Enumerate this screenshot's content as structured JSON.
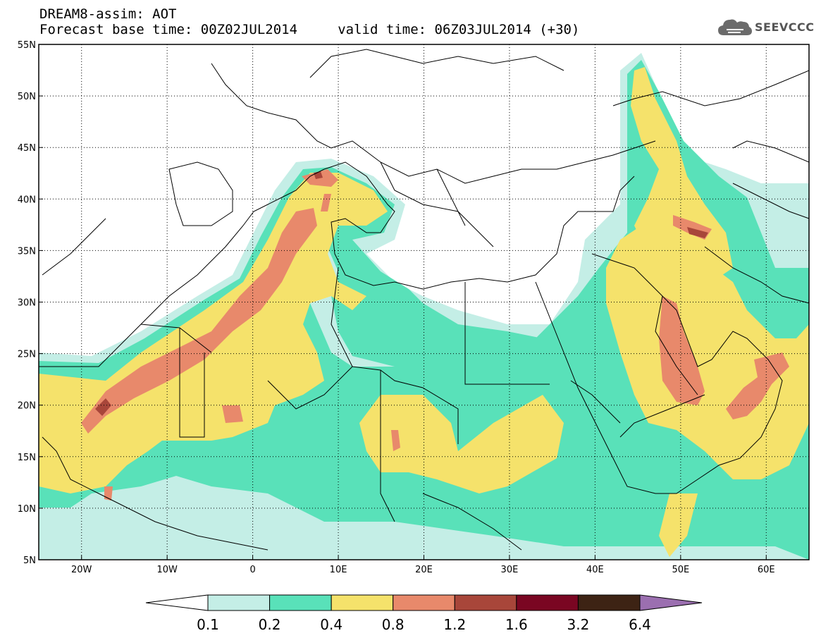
{
  "header": {
    "title_line1": "DREAM8-assim: AOT",
    "title_line2": "Forecast base time: 00Z02JUL2014     valid time: 06Z03JUL2014 (+30)"
  },
  "logo": {
    "text": "SEEVCCC",
    "icon": "cloud-icon"
  },
  "map": {
    "lon_range": [
      -25,
      65
    ],
    "lat_range": [
      5,
      55
    ],
    "lon_ticks": [
      {
        "lon": -20,
        "label": "20W"
      },
      {
        "lon": -10,
        "label": "10W"
      },
      {
        "lon": 0,
        "label": "0"
      },
      {
        "lon": 10,
        "label": "10E"
      },
      {
        "lon": 20,
        "label": "20E"
      },
      {
        "lon": 30,
        "label": "30E"
      },
      {
        "lon": 40,
        "label": "40E"
      },
      {
        "lon": 50,
        "label": "50E"
      },
      {
        "lon": 60,
        "label": "60E"
      }
    ],
    "lat_ticks": [
      {
        "lat": 5,
        "label": "5N"
      },
      {
        "lat": 10,
        "label": "10N"
      },
      {
        "lat": 15,
        "label": "15N"
      },
      {
        "lat": 20,
        "label": "20N"
      },
      {
        "lat": 25,
        "label": "25N"
      },
      {
        "lat": 30,
        "label": "30N"
      },
      {
        "lat": 35,
        "label": "35N"
      },
      {
        "lat": 40,
        "label": "40N"
      },
      {
        "lat": 45,
        "label": "45N"
      },
      {
        "lat": 50,
        "label": "50N"
      },
      {
        "lat": 55,
        "label": "55N"
      }
    ]
  },
  "colorbar": {
    "levels": [
      "0.1",
      "0.2",
      "0.4",
      "0.8",
      "1.2",
      "1.6",
      "3.2",
      "6.4"
    ],
    "colors": [
      "#ffffff",
      "#c4eee6",
      "#59e1b9",
      "#f5e26b",
      "#e8896b",
      "#a8463a",
      "#7a0622",
      "#3d2314",
      "#9b6fb0"
    ]
  }
}
